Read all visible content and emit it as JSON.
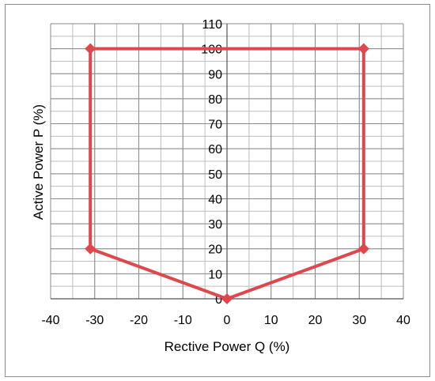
{
  "chart_data": {
    "type": "scatter",
    "title": "",
    "xlabel": "Rective Power Q (%)",
    "ylabel": "Active Power P (%)",
    "xlim": [
      -40,
      40
    ],
    "ylim": [
      0,
      110
    ],
    "x_ticks": [
      -40,
      -30,
      -20,
      -10,
      0,
      10,
      20,
      30,
      40
    ],
    "y_ticks": [
      0,
      10,
      20,
      30,
      40,
      50,
      60,
      70,
      80,
      90,
      100,
      110
    ],
    "x_tick_labels": [
      "-40",
      "-30",
      "-20",
      "-10",
      "0",
      "10",
      "20",
      "30",
      "40"
    ],
    "y_tick_labels": [
      "0",
      "10",
      "20",
      "30",
      "40",
      "50",
      "60",
      "70",
      "80",
      "90",
      "100",
      "110"
    ],
    "grid": true,
    "legend": "none",
    "series": [
      {
        "color": "#e0474c",
        "marker": "diamond",
        "points": [
          {
            "x": -31,
            "y": 100
          },
          {
            "x": 31,
            "y": 100
          },
          {
            "x": 31,
            "y": 20
          },
          {
            "x": 0,
            "y": 0
          },
          {
            "x": -31,
            "y": 20
          },
          {
            "x": -31,
            "y": 100
          }
        ]
      }
    ]
  }
}
